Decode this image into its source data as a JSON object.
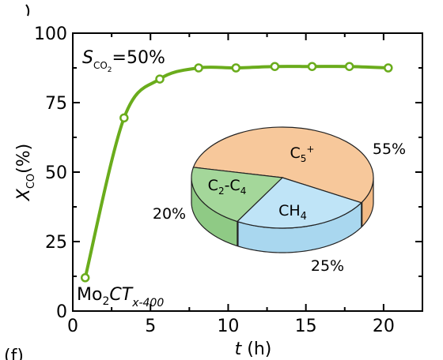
{
  "panel_label": "(f)",
  "colors": {
    "line": "#6aac1c",
    "pie_c5": "#f7c89b",
    "pie_c5_side": "#f2b984",
    "pie_c2c4": "#a4d79a",
    "pie_c2c4_side": "#8fca85",
    "pie_ch4": "#bfe4f7",
    "pie_ch4_side": "#a9d7ef"
  },
  "annotations": {
    "selectivity": {
      "prefix": "S",
      "sub": "CO",
      "sub2": "2",
      "suffix": "=50%"
    },
    "catalyst": {
      "formula": "Mo",
      "sub": "2",
      "italic": "CT",
      "sub2": "x-400"
    }
  },
  "chart_data": {
    "type": "line",
    "xlabel": {
      "var": "t",
      "unit": " (h)"
    },
    "ylabel": {
      "var": "X",
      "sub": "CO",
      "unit": "(%)"
    },
    "xlim": [
      0,
      22.5
    ],
    "ylim": [
      0,
      100
    ],
    "xticks": [
      0,
      5,
      10,
      15,
      20
    ],
    "yticks": [
      0,
      25,
      50,
      75,
      100
    ],
    "grid": false,
    "series": [
      {
        "x": [
          0.8,
          3.3,
          5.6,
          8.1,
          10.5,
          13.0,
          15.4,
          17.8,
          20.3
        ],
        "values": [
          12,
          69.5,
          83.5,
          87.5,
          87.5,
          88,
          88,
          88,
          87.5
        ],
        "smooth": true
      }
    ],
    "inset": {
      "type": "pie",
      "slices": [
        {
          "label": "C5+",
          "label_main": "C",
          "label_sub": "5",
          "label_sup": "+",
          "value": 55,
          "pct_label": "55%"
        },
        {
          "label": "CH4",
          "label_main": "CH",
          "label_sub": "4",
          "value": 25,
          "pct_label": "25%"
        },
        {
          "label": "C2-C4",
          "label_main": "C",
          "label_sub": "2",
          "label_mid": "-C",
          "label_sub2": "4",
          "value": 20,
          "pct_label": "20%"
        }
      ]
    }
  }
}
